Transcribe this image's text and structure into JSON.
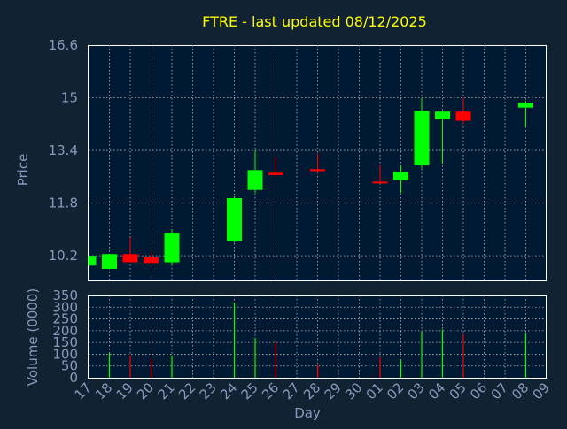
{
  "chart_data": {
    "type": "candlestick",
    "title": "FTRE - last updated 08/12/2025",
    "xlabel": "Day",
    "price_axis": {
      "ylabel": "Price",
      "ylim": [
        9.45,
        16.6
      ],
      "ticks": [
        "16.6",
        "15",
        "13.4",
        "11.8",
        "10.2"
      ],
      "tick_values": [
        16.6,
        15.0,
        13.4,
        11.8,
        10.2
      ]
    },
    "volume_axis": {
      "ylabel": "Volume (0000)",
      "ylim": [
        0,
        350
      ],
      "ticks": [
        "350",
        "300",
        "250",
        "200",
        "150",
        "100",
        "50",
        "0"
      ],
      "tick_values": [
        350,
        300,
        250,
        200,
        150,
        100,
        50,
        0
      ]
    },
    "grid": true,
    "colors": {
      "up": "#00ff00",
      "down": "#ff0000",
      "grid": "#bbbbbb",
      "title": "#ffff00",
      "axis_text": "#8899bb",
      "panel_bg": "#001a33",
      "page_bg": "#112233"
    },
    "x_ticks": [
      "17",
      "18",
      "19",
      "20",
      "21",
      "22",
      "23",
      "24",
      "25",
      "26",
      "27",
      "28",
      "29",
      "30",
      "01",
      "02",
      "03",
      "04",
      "05",
      "06",
      "07",
      "08",
      "09"
    ],
    "candles": [
      {
        "day": "17",
        "open": 9.9,
        "high": 10.2,
        "low": 9.9,
        "close": 10.2,
        "volume": 0
      },
      {
        "day": "18",
        "open": 9.8,
        "high": 10.2,
        "low": 9.8,
        "close": 10.25,
        "volume": 105
      },
      {
        "day": "19",
        "open": 10.25,
        "high": 10.75,
        "low": 10.0,
        "close": 10.0,
        "volume": 95
      },
      {
        "day": "20",
        "open": 10.15,
        "high": 10.3,
        "low": 9.95,
        "close": 9.98,
        "volume": 80
      },
      {
        "day": "21",
        "open": 10.0,
        "high": 11.0,
        "low": 9.9,
        "close": 10.9,
        "volume": 95
      },
      {
        "day": "24",
        "open": 10.65,
        "high": 12.0,
        "low": 10.6,
        "close": 11.95,
        "volume": 320
      },
      {
        "day": "25",
        "open": 12.2,
        "high": 13.4,
        "low": 12.1,
        "close": 12.8,
        "volume": 170
      },
      {
        "day": "26",
        "open": 12.72,
        "high": 13.2,
        "low": 12.6,
        "close": 12.65,
        "volume": 150
      },
      {
        "day": "28",
        "open": 12.83,
        "high": 13.3,
        "low": 12.7,
        "close": 12.77,
        "volume": 55
      },
      {
        "day": "01",
        "open": 12.45,
        "high": 12.95,
        "low": 12.4,
        "close": 12.42,
        "volume": 85
      },
      {
        "day": "02",
        "open": 12.5,
        "high": 12.95,
        "low": 12.1,
        "close": 12.75,
        "volume": 75
      },
      {
        "day": "03",
        "open": 12.95,
        "high": 15.0,
        "low": 12.85,
        "close": 14.6,
        "volume": 195
      },
      {
        "day": "04",
        "open": 14.35,
        "high": 14.6,
        "low": 13.0,
        "close": 14.58,
        "volume": 205
      },
      {
        "day": "05",
        "open": 14.58,
        "high": 15.0,
        "low": 14.2,
        "close": 14.3,
        "volume": 185
      },
      {
        "day": "08",
        "open": 14.7,
        "high": 14.9,
        "low": 14.1,
        "close": 14.85,
        "volume": 190
      }
    ]
  }
}
